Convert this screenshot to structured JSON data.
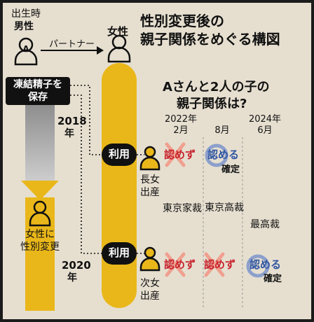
{
  "title": {
    "line1": "性別変更後の",
    "line2": "親子関係をめぐる構図"
  },
  "person_a": {
    "caption_line1": "出生時",
    "caption_line2": "男性",
    "letter": "A",
    "arrow_label": "パートナー",
    "frozen_sperm_line1": "凍結精子を",
    "frozen_sperm_line2": "保存",
    "change_line1": "女性に",
    "change_line2": "性別変更",
    "year_2018": "2018",
    "year_2020": "2020",
    "year_suffix": "年"
  },
  "partner": {
    "label": "女性",
    "use_label": "利用"
  },
  "children": {
    "first_line1": "長女",
    "first_line2": "出産",
    "second_line1": "次女",
    "second_line2": "出産"
  },
  "question": {
    "line1": "Aさんと2人の子の",
    "line2": "親子関係は?"
  },
  "timeline": [
    {
      "date_line1": "2022年",
      "date_line2": "2月",
      "court": "東京家裁"
    },
    {
      "date_line1": "",
      "date_line2": "8月",
      "court": "東京高裁"
    },
    {
      "date_line1": "2024年",
      "date_line2": "6月",
      "court": "最高裁"
    }
  ],
  "rulings": {
    "row1": [
      {
        "text": "認めず",
        "mark": "x-icon"
      },
      {
        "text": "認める",
        "mark": "circle-icon",
        "extra": "確定"
      }
    ],
    "row2": [
      {
        "text": "認めず",
        "mark": "x-icon"
      },
      {
        "text": "認めず",
        "mark": "x-icon"
      },
      {
        "text": "認める",
        "mark": "circle-icon",
        "extra": "確定"
      }
    ]
  },
  "colors": {
    "paper": "#e6dfd0",
    "yellow": "#e9b71a",
    "gray_bar": "#aaaaaa",
    "black": "#111111",
    "red": "#c8232c",
    "blue": "#2f56a3",
    "x_mark": "#f0a08f",
    "circle_mark": "#8da0cc"
  }
}
